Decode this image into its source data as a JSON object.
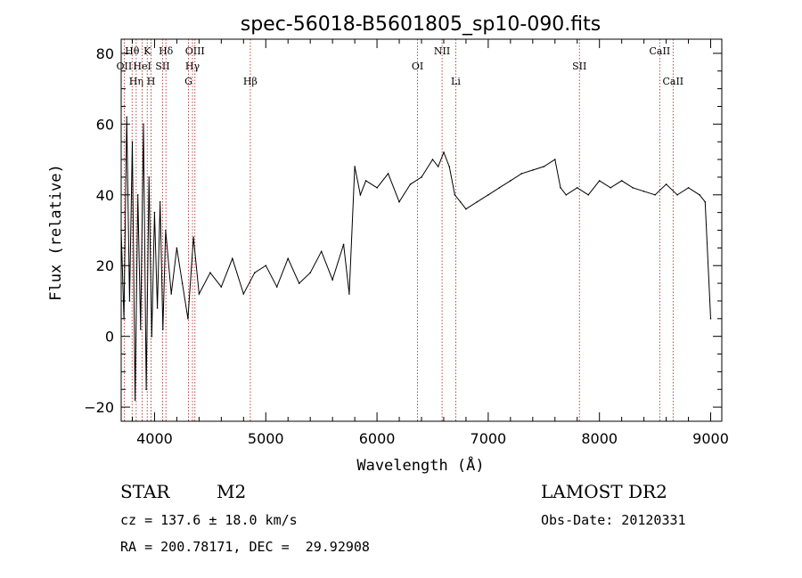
{
  "chart_data": {
    "type": "line",
    "title": "spec-56018-B5601805_sp10-090.fits",
    "xlabel": "Wavelength (Å)",
    "ylabel": "Flux (relative)",
    "xlim": [
      3700,
      9100
    ],
    "ylim": [
      -24,
      84
    ],
    "xticks": [
      4000,
      5000,
      6000,
      7000,
      8000,
      9000
    ],
    "yticks": [
      -20,
      0,
      20,
      40,
      60,
      80
    ],
    "grid": false,
    "spectral_lines": [
      {
        "name": "OII",
        "wavelength": 3727,
        "row": 2
      },
      {
        "name": "Hθ",
        "wavelength": 3798,
        "row": 1
      },
      {
        "name": "Hη",
        "wavelength": 3835,
        "row": 3
      },
      {
        "name": "HeI",
        "wavelength": 3889,
        "row": 2
      },
      {
        "name": "K",
        "wavelength": 3934,
        "row": 1
      },
      {
        "name": "H",
        "wavelength": 3969,
        "row": 3
      },
      {
        "name": "SII",
        "wavelength": 4072,
        "row": 2
      },
      {
        "name": "Hδ",
        "wavelength": 4102,
        "row": 1
      },
      {
        "name": "G",
        "wavelength": 4305,
        "row": 3
      },
      {
        "name": "Hγ",
        "wavelength": 4341,
        "row": 2
      },
      {
        "name": "OIII",
        "wavelength": 4363,
        "row": 1
      },
      {
        "name": "Hβ",
        "wavelength": 4861,
        "row": 3
      },
      {
        "name": "OI",
        "wavelength": 6364,
        "row": 2
      },
      {
        "name": "NII",
        "wavelength": 6585,
        "row": 1
      },
      {
        "name": "Li",
        "wavelength": 6708,
        "row": 3
      },
      {
        "name": "SII",
        "wavelength": 7820,
        "row": 2
      },
      {
        "name": "CaII",
        "wavelength": 8542,
        "row": 1
      },
      {
        "name": "CaII",
        "wavelength": 8662,
        "row": 3
      }
    ],
    "series": [
      {
        "name": "flux",
        "x": [
          3700,
          3725,
          3750,
          3775,
          3800,
          3825,
          3850,
          3875,
          3900,
          3925,
          3950,
          3975,
          4000,
          4025,
          4050,
          4075,
          4100,
          4150,
          4200,
          4250,
          4300,
          4350,
          4400,
          4500,
          4600,
          4700,
          4800,
          4900,
          5000,
          5100,
          5200,
          5300,
          5400,
          5500,
          5600,
          5700,
          5750,
          5800,
          5850,
          5900,
          6000,
          6100,
          6200,
          6300,
          6400,
          6500,
          6550,
          6600,
          6650,
          6700,
          6750,
          6800,
          6900,
          7000,
          7100,
          7200,
          7300,
          7400,
          7500,
          7600,
          7650,
          7700,
          7800,
          7900,
          8000,
          8100,
          8200,
          8300,
          8400,
          8500,
          8600,
          8700,
          8800,
          8900,
          8950,
          9000
        ],
        "values": [
          30,
          5,
          62,
          10,
          55,
          -18,
          40,
          2,
          60,
          -15,
          45,
          0,
          35,
          8,
          38,
          2,
          30,
          12,
          25,
          15,
          5,
          28,
          12,
          18,
          14,
          22,
          12,
          18,
          20,
          14,
          22,
          15,
          18,
          24,
          16,
          26,
          12,
          48,
          40,
          44,
          42,
          46,
          38,
          43,
          45,
          50,
          48,
          52,
          48,
          40,
          38,
          36,
          38,
          40,
          42,
          44,
          46,
          47,
          48,
          50,
          42,
          40,
          42,
          40,
          44,
          42,
          44,
          42,
          41,
          40,
          43,
          40,
          42,
          40,
          38,
          5
        ]
      }
    ]
  },
  "info": {
    "object_class": "STAR",
    "subclass": "M2",
    "survey": "LAMOST DR2",
    "redshift": "cz = 137.6 ± 18.0 km/s",
    "obs_date": "Obs-Date: 20120331",
    "coords": "RA = 200.78171, DEC =  29.92908"
  }
}
